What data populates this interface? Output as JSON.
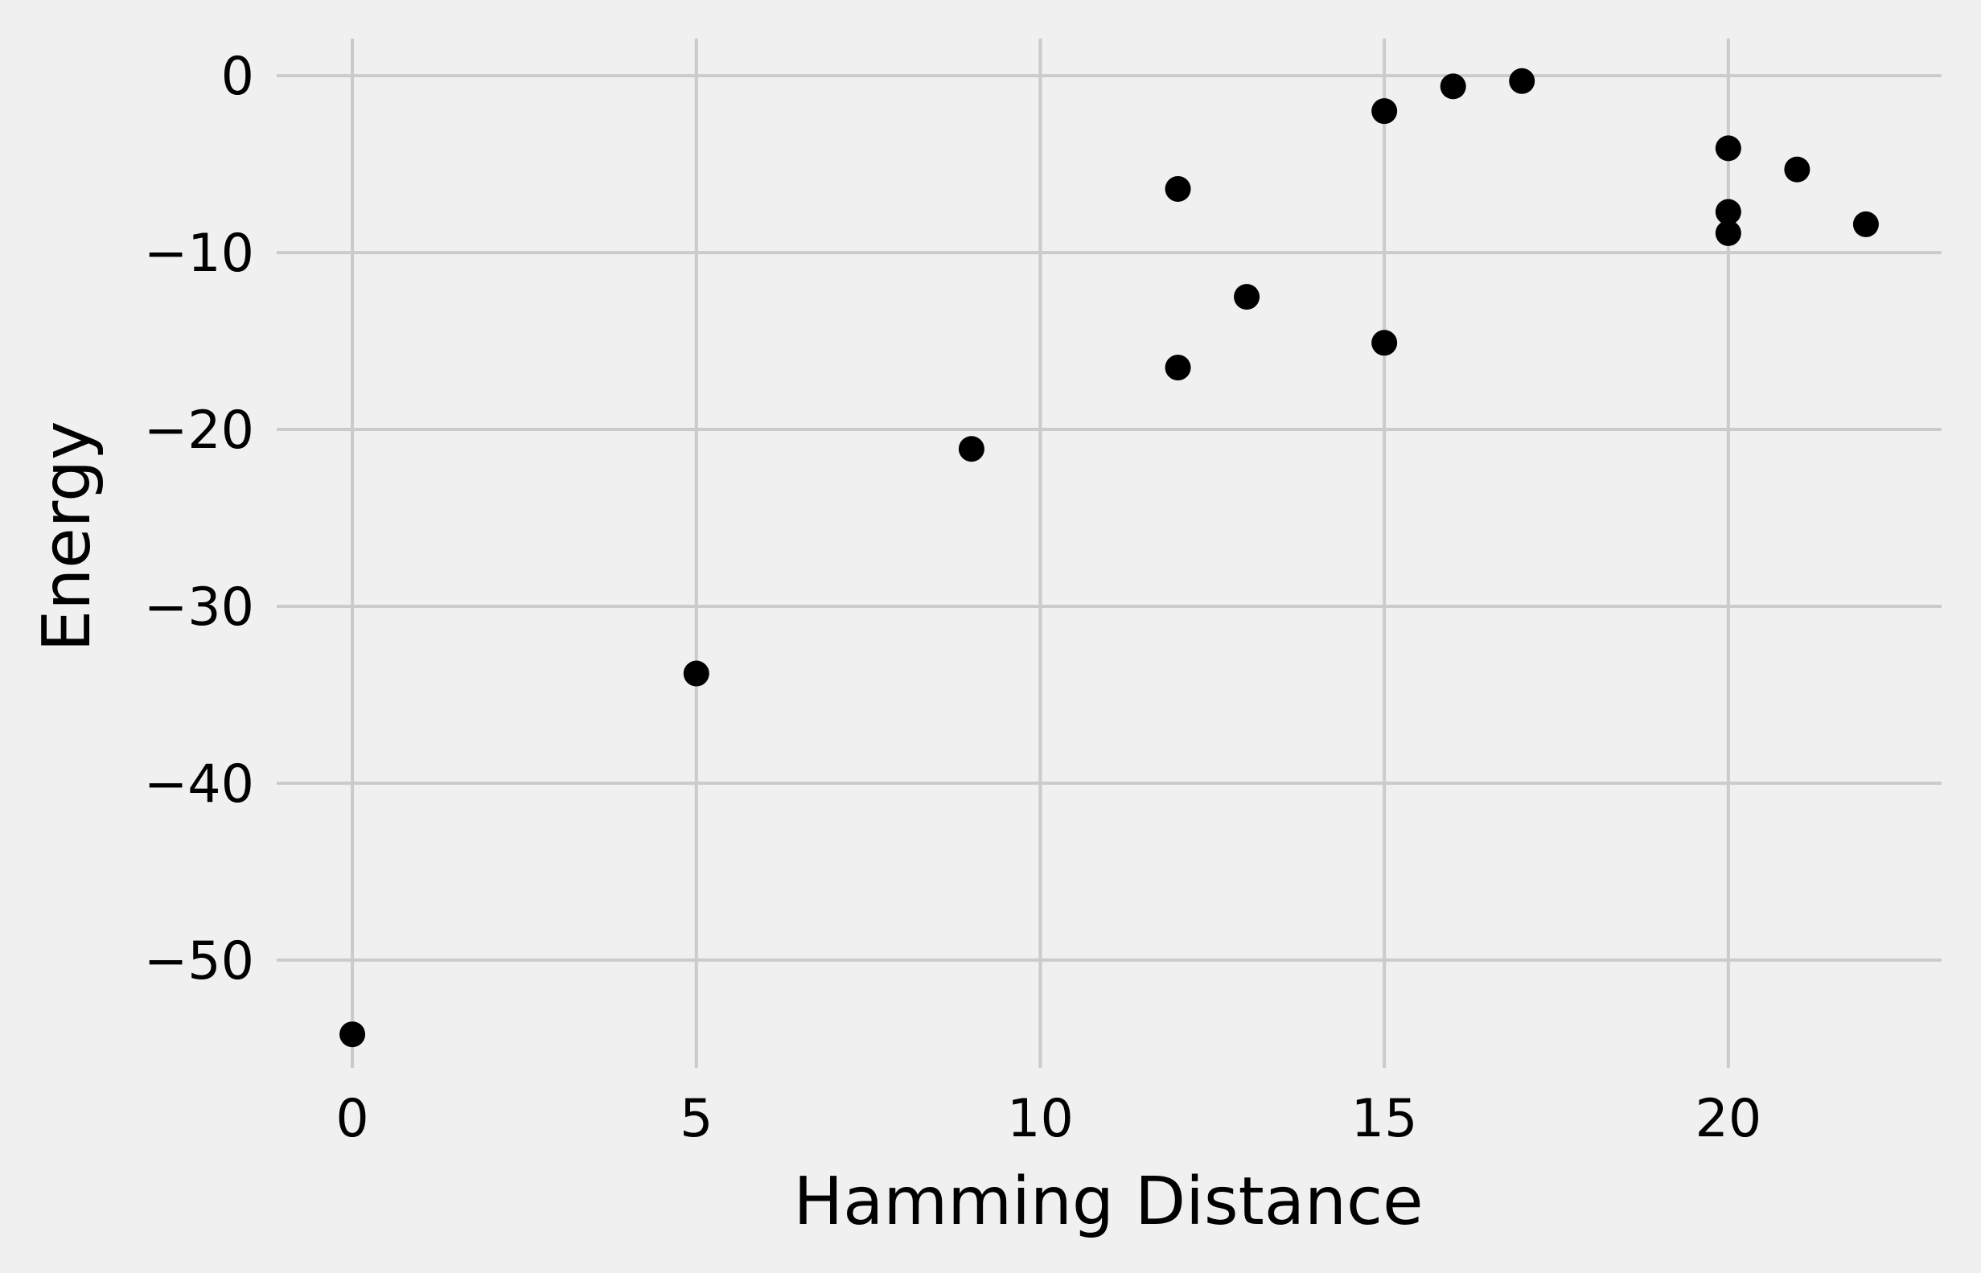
{
  "chart_data": {
    "type": "scatter",
    "title": "",
    "xlabel": "Hamming Distance",
    "ylabel": "Energy",
    "xlim": [
      -1.1,
      23.1
    ],
    "ylim": [
      -56.1,
      2.1
    ],
    "xticks": [
      0,
      5,
      10,
      15,
      20
    ],
    "yticks": [
      0,
      -10,
      -20,
      -30,
      -40,
      -50
    ],
    "xtick_labels": [
      "0",
      "5",
      "10",
      "15",
      "20"
    ],
    "ytick_labels": [
      "0",
      "−10",
      "−20",
      "−30",
      "−40",
      "−50"
    ],
    "grid": true,
    "points": [
      {
        "x": 0,
        "y": -54.2
      },
      {
        "x": 5,
        "y": -33.8
      },
      {
        "x": 9,
        "y": -21.1
      },
      {
        "x": 12,
        "y": -6.4
      },
      {
        "x": 12,
        "y": -16.5
      },
      {
        "x": 13,
        "y": -12.5
      },
      {
        "x": 15,
        "y": -2.0
      },
      {
        "x": 15,
        "y": -15.1
      },
      {
        "x": 16,
        "y": -0.6
      },
      {
        "x": 17,
        "y": -0.3
      },
      {
        "x": 20,
        "y": -4.1
      },
      {
        "x": 20,
        "y": -7.7
      },
      {
        "x": 20,
        "y": -8.9
      },
      {
        "x": 21,
        "y": -5.3
      },
      {
        "x": 22,
        "y": -8.4
      }
    ]
  },
  "colors": {
    "background": "#f0f0f0",
    "grid": "#cbcbcb",
    "marker": "#000000"
  }
}
